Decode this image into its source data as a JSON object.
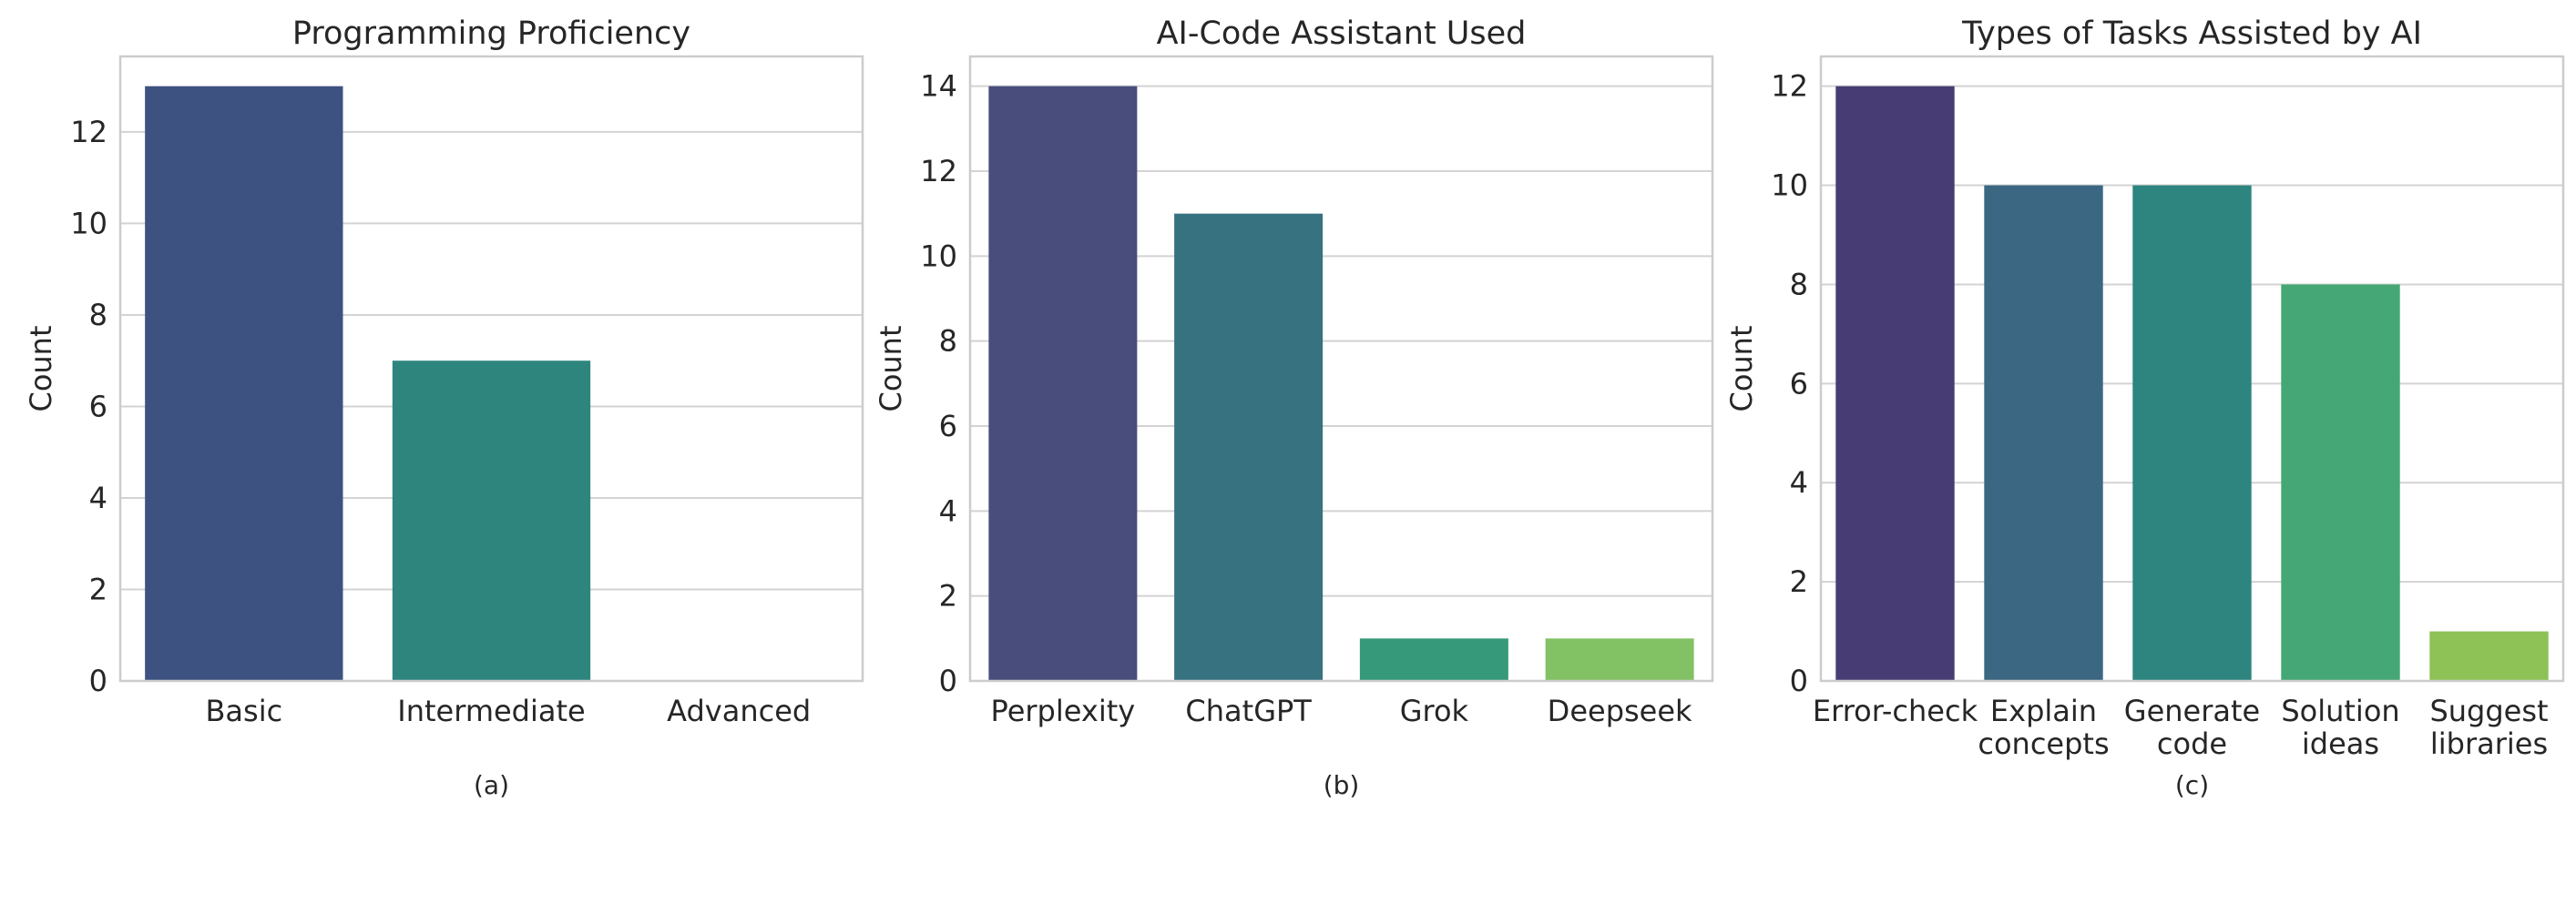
{
  "chart_data": [
    {
      "type": "bar",
      "title": "Programming Proficiency",
      "xlabel": "",
      "ylabel": "Count",
      "categories": [
        "Basic",
        "Intermediate",
        "Advanced"
      ],
      "values": [
        13,
        7,
        0
      ],
      "colors": [
        "#3e5281",
        "#2e857e",
        "#2e857e"
      ],
      "ylim": [
        0,
        13.65
      ],
      "yticks": [
        0,
        2,
        4,
        6,
        8,
        10,
        12
      ],
      "grid": "horizontal",
      "caption": "(a)"
    },
    {
      "type": "bar",
      "title": "AI-Code Assistant Used",
      "xlabel": "",
      "ylabel": "Count",
      "categories": [
        "Perplexity",
        "ChatGPT",
        "Grok",
        "Deepseek"
      ],
      "values": [
        14,
        11,
        1,
        1
      ],
      "colors": [
        "#484d7c",
        "#367280",
        "#369979",
        "#83c165"
      ],
      "ylim": [
        0,
        14.7
      ],
      "yticks": [
        0,
        2,
        4,
        6,
        8,
        10,
        12,
        14
      ],
      "grid": "horizontal",
      "caption": "(b)"
    },
    {
      "type": "bar",
      "title": "Types of Tasks Assisted by AI",
      "xlabel": "",
      "ylabel": "Count",
      "categories": [
        "Error-check",
        "Explain\nconcepts",
        "Generate\ncode",
        "Solution\nideas",
        "Suggest\nlibraries"
      ],
      "values": [
        12,
        10,
        10,
        8,
        1
      ],
      "colors": [
        "#473d74",
        "#3b6782",
        "#2e847f",
        "#45a775",
        "#8ec156"
      ],
      "ylim": [
        0,
        12.6
      ],
      "yticks": [
        0,
        2,
        4,
        6,
        8,
        10,
        12
      ],
      "grid": "horizontal",
      "caption": "(c)"
    }
  ]
}
